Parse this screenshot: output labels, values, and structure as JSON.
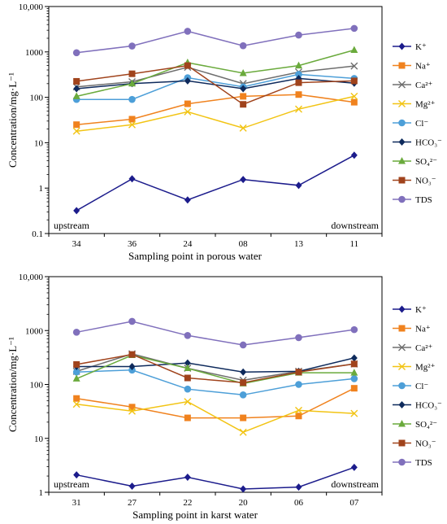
{
  "chart_data": [
    {
      "type": "line",
      "xlabel": "Sampling point in porous water",
      "ylabel": "Concentration/mg·L⁻¹",
      "yscale": "log",
      "ylim": [
        0.1,
        10000
      ],
      "ytick_labels": [
        "0.1",
        "1",
        "10",
        "100",
        "1000",
        "10,000"
      ],
      "categories": [
        "34",
        "36",
        "24",
        "08",
        "13",
        "11"
      ],
      "annotations": {
        "left": "upstream",
        "right": "downstream"
      },
      "legend_position": "right",
      "series": [
        {
          "name": "K⁺",
          "values": [
            0.32,
            1.6,
            0.55,
            1.55,
            1.15,
            5.3
          ]
        },
        {
          "name": "Na⁺",
          "values": [
            25,
            33,
            72,
            105,
            115,
            78
          ]
        },
        {
          "name": "Ca²⁺",
          "values": [
            170,
            220,
            460,
            200,
            360,
            490
          ]
        },
        {
          "name": "Mg²⁺",
          "values": [
            18,
            25,
            48,
            21,
            55,
            105
          ]
        },
        {
          "name": "Cl⁻",
          "values": [
            90,
            90,
            270,
            170,
            320,
            260
          ]
        },
        {
          "name": "HCO₃⁻",
          "values": [
            155,
            200,
            230,
            155,
            260,
            205
          ]
        },
        {
          "name": "SO₄²⁻",
          "values": [
            105,
            200,
            580,
            340,
            500,
            1100
          ]
        },
        {
          "name": "NO₃⁻",
          "values": [
            225,
            330,
            500,
            70,
            210,
            230
          ]
        },
        {
          "name": "TDS",
          "values": [
            960,
            1350,
            2850,
            1370,
            2350,
            3300
          ]
        }
      ]
    },
    {
      "type": "line",
      "xlabel": "Sampling point in karst water",
      "ylabel": "Concentration/mg·L⁻¹",
      "yscale": "log",
      "ylim": [
        1,
        10000
      ],
      "ytick_labels": [
        "1",
        "10",
        "100",
        "1000",
        "10,000"
      ],
      "categories": [
        "31",
        "27",
        "22",
        "20",
        "06",
        "07"
      ],
      "annotations": {
        "left": "upstream",
        "right": "downstream"
      },
      "legend_position": "right",
      "series": [
        {
          "name": "K⁺",
          "values": [
            2.1,
            1.3,
            1.9,
            1.15,
            1.25,
            2.9
          ]
        },
        {
          "name": "Na⁺",
          "values": [
            55,
            38,
            24,
            24,
            26,
            85
          ]
        },
        {
          "name": "Ca²⁺",
          "values": [
            175,
            370,
            200,
            120,
            175,
            240
          ]
        },
        {
          "name": "Mg²⁺",
          "values": [
            43,
            32,
            48,
            13,
            33,
            29
          ]
        },
        {
          "name": "Cl⁻",
          "values": [
            170,
            185,
            82,
            64,
            100,
            128
          ]
        },
        {
          "name": "HCO₃⁻",
          "values": [
            215,
            215,
            250,
            170,
            175,
            310
          ]
        },
        {
          "name": "SO₄²⁻",
          "values": [
            128,
            350,
            200,
            104,
            165,
            165
          ]
        },
        {
          "name": "NO₃⁻",
          "values": [
            235,
            360,
            132,
            108,
            170,
            240
          ]
        },
        {
          "name": "TDS",
          "values": [
            930,
            1480,
            810,
            540,
            740,
            1040
          ]
        }
      ]
    }
  ],
  "series_styles": [
    {
      "color": "#1c1c8c",
      "marker": "diamond"
    },
    {
      "color": "#f0821e",
      "marker": "square"
    },
    {
      "color": "#6e6e6e",
      "marker": "x"
    },
    {
      "color": "#f2c414",
      "marker": "x"
    },
    {
      "color": "#4d9fd8",
      "marker": "circle"
    },
    {
      "color": "#0e2a5c",
      "marker": "diamond"
    },
    {
      "color": "#6aaa3c",
      "marker": "triangle"
    },
    {
      "color": "#a0431c",
      "marker": "square"
    },
    {
      "color": "#8070bc",
      "marker": "circle"
    }
  ]
}
